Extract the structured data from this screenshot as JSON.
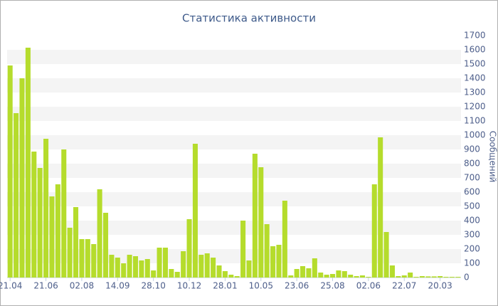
{
  "chart_data": {
    "type": "bar",
    "title": "Статистика активности",
    "y_axis_label": "Сообщений",
    "categories": [
      "21.04",
      null,
      null,
      null,
      null,
      null,
      "21.06",
      null,
      null,
      null,
      null,
      null,
      "02.08",
      null,
      null,
      null,
      null,
      null,
      "14.09",
      null,
      null,
      null,
      null,
      null,
      "28.10",
      null,
      null,
      null,
      null,
      null,
      "10.12",
      null,
      null,
      null,
      null,
      null,
      "28.01",
      null,
      null,
      null,
      null,
      null,
      "10.05",
      null,
      null,
      null,
      null,
      null,
      "23.06",
      null,
      null,
      null,
      null,
      null,
      "25.08",
      null,
      null,
      null,
      null,
      null,
      "02.06",
      null,
      null,
      null,
      null,
      null,
      "22.07",
      null,
      null,
      null,
      null,
      null,
      "20.03",
      null,
      null,
      null
    ],
    "values": [
      1490,
      1155,
      1400,
      1615,
      885,
      770,
      975,
      570,
      655,
      900,
      350,
      495,
      270,
      270,
      235,
      620,
      455,
      160,
      140,
      100,
      160,
      150,
      120,
      130,
      50,
      210,
      210,
      60,
      40,
      185,
      410,
      940,
      160,
      170,
      140,
      85,
      45,
      20,
      10,
      400,
      120,
      870,
      775,
      375,
      220,
      230,
      540,
      15,
      60,
      80,
      65,
      135,
      35,
      20,
      25,
      50,
      45,
      20,
      10,
      15,
      5,
      655,
      985,
      320,
      85,
      10,
      15,
      35,
      5,
      10,
      8,
      8,
      10,
      5,
      5,
      5
    ],
    "color": "#b5dc2c",
    "ylim": [
      0,
      1700
    ],
    "yticks": [
      0,
      100,
      200,
      300,
      400,
      500,
      600,
      700,
      800,
      900,
      1000,
      1100,
      1200,
      1300,
      1400,
      1500,
      1600,
      1700
    ],
    "grid": "bands"
  }
}
